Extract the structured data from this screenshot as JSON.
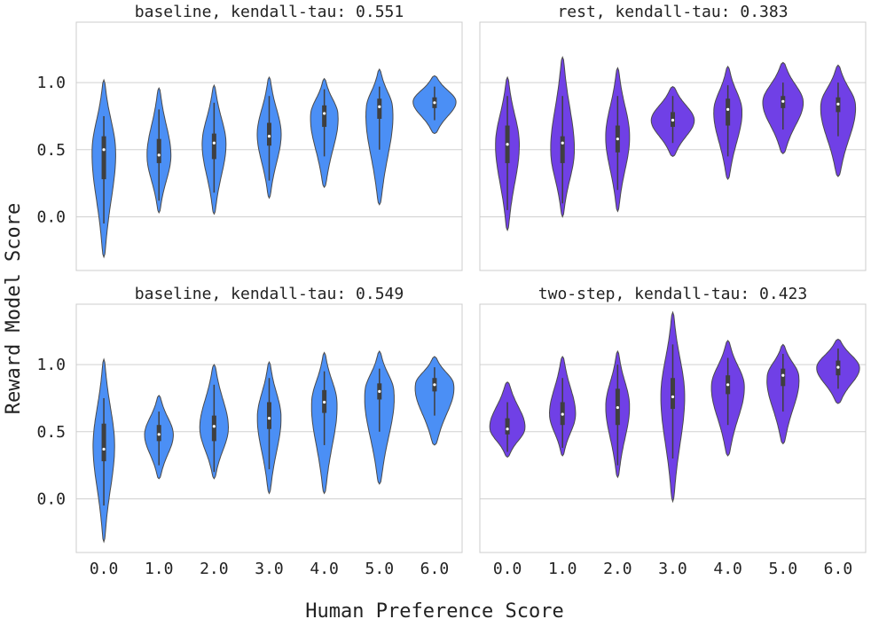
{
  "figure": {
    "xlabel": "Human Preference Score",
    "ylabel": "Reward Model Score"
  },
  "chart_data": [
    {
      "type": "violin",
      "title": "baseline, kendall-tau: 0.551",
      "color": "#4b8ff5",
      "categories": [
        "0.0",
        "1.0",
        "2.0",
        "3.0",
        "4.0",
        "5.0",
        "6.0"
      ],
      "yticks": [
        "0.0",
        "0.5",
        "1.0"
      ],
      "ylim": [
        -0.4,
        1.45
      ],
      "grid": true,
      "distributions": [
        {
          "min": -0.3,
          "max": 1.02,
          "q1": 0.28,
          "median": 0.5,
          "q3": 0.6,
          "whisker": [
            -0.05,
            0.75
          ],
          "mode": 0.5,
          "peak": 0.5
        },
        {
          "min": 0.03,
          "max": 0.96,
          "q1": 0.4,
          "median": 0.46,
          "q3": 0.58,
          "whisker": [
            0.12,
            0.8
          ],
          "mode": 0.45,
          "peak": 0.5
        },
        {
          "min": 0.02,
          "max": 0.98,
          "q1": 0.43,
          "median": 0.55,
          "q3": 0.62,
          "whisker": [
            0.18,
            0.85
          ],
          "mode": 0.55,
          "peak": 0.5
        },
        {
          "min": 0.14,
          "max": 1.04,
          "q1": 0.53,
          "median": 0.6,
          "q3": 0.7,
          "whisker": [
            0.27,
            0.9
          ],
          "mode": 0.62,
          "peak": 0.5
        },
        {
          "min": 0.22,
          "max": 1.03,
          "q1": 0.67,
          "median": 0.77,
          "q3": 0.83,
          "whisker": [
            0.45,
            0.95
          ],
          "mode": 0.77,
          "peak": 0.6
        },
        {
          "min": 0.09,
          "max": 1.1,
          "q1": 0.73,
          "median": 0.82,
          "q3": 0.88,
          "whisker": [
            0.5,
            0.97
          ],
          "mode": 0.82,
          "peak": 0.6
        },
        {
          "min": 0.62,
          "max": 1.05,
          "q1": 0.81,
          "median": 0.85,
          "q3": 0.89,
          "whisker": [
            0.72,
            0.97
          ],
          "mode": 0.86,
          "peak": 0.9
        }
      ]
    },
    {
      "type": "violin",
      "title": "rest, kendall-tau: 0.383",
      "color": "#7040e6",
      "categories": [
        "0.0",
        "1.0",
        "2.0",
        "3.0",
        "4.0",
        "5.0",
        "6.0"
      ],
      "yticks": [
        "0.0",
        "0.5",
        "1.0"
      ],
      "ylim": [
        -0.4,
        1.45
      ],
      "grid": true,
      "distributions": [
        {
          "min": -0.1,
          "max": 1.04,
          "q1": 0.4,
          "median": 0.54,
          "q3": 0.68,
          "whisker": [
            0.05,
            0.9
          ],
          "mode": 0.55,
          "peak": 0.5
        },
        {
          "min": 0.0,
          "max": 1.19,
          "q1": 0.4,
          "median": 0.55,
          "q3": 0.6,
          "whisker": [
            0.1,
            0.9
          ],
          "mode": 0.48,
          "peak": 0.5
        },
        {
          "min": 0.04,
          "max": 1.11,
          "q1": 0.48,
          "median": 0.58,
          "q3": 0.68,
          "whisker": [
            0.2,
            0.9
          ],
          "mode": 0.6,
          "peak": 0.5
        },
        {
          "min": 0.45,
          "max": 0.97,
          "q1": 0.67,
          "median": 0.72,
          "q3": 0.78,
          "whisker": [
            0.55,
            0.9
          ],
          "mode": 0.72,
          "peak": 0.9
        },
        {
          "min": 0.28,
          "max": 1.12,
          "q1": 0.68,
          "median": 0.8,
          "q3": 0.88,
          "whisker": [
            0.45,
            0.98
          ],
          "mode": 0.8,
          "peak": 0.6
        },
        {
          "min": 0.47,
          "max": 1.15,
          "q1": 0.81,
          "median": 0.86,
          "q3": 0.9,
          "whisker": [
            0.65,
            1.0
          ],
          "mode": 0.86,
          "peak": 0.85
        },
        {
          "min": 0.3,
          "max": 1.13,
          "q1": 0.78,
          "median": 0.84,
          "q3": 0.89,
          "whisker": [
            0.6,
            1.0
          ],
          "mode": 0.84,
          "peak": 0.75
        }
      ]
    },
    {
      "type": "violin",
      "title": "baseline, kendall-tau: 0.549",
      "color": "#4b8ff5",
      "categories": [
        "0.0",
        "1.0",
        "2.0",
        "3.0",
        "4.0",
        "5.0",
        "6.0"
      ],
      "yticks": [
        "0.0",
        "0.5",
        "1.0"
      ],
      "ylim": [
        -0.4,
        1.45
      ],
      "grid": true,
      "distributions": [
        {
          "min": -0.32,
          "max": 1.04,
          "q1": 0.28,
          "median": 0.37,
          "q3": 0.56,
          "whisker": [
            -0.05,
            0.75
          ],
          "mode": 0.4,
          "peak": 0.45
        },
        {
          "min": 0.15,
          "max": 0.77,
          "q1": 0.43,
          "median": 0.48,
          "q3": 0.55,
          "whisker": [
            0.25,
            0.65
          ],
          "mode": 0.48,
          "peak": 0.6
        },
        {
          "min": 0.15,
          "max": 1.0,
          "q1": 0.43,
          "median": 0.54,
          "q3": 0.62,
          "whisker": [
            0.2,
            0.85
          ],
          "mode": 0.52,
          "peak": 0.6
        },
        {
          "min": 0.04,
          "max": 1.02,
          "q1": 0.52,
          "median": 0.6,
          "q3": 0.72,
          "whisker": [
            0.22,
            0.9
          ],
          "mode": 0.62,
          "peak": 0.5
        },
        {
          "min": 0.04,
          "max": 1.09,
          "q1": 0.64,
          "median": 0.72,
          "q3": 0.81,
          "whisker": [
            0.4,
            0.95
          ],
          "mode": 0.73,
          "peak": 0.55
        },
        {
          "min": 0.11,
          "max": 1.1,
          "q1": 0.74,
          "median": 0.8,
          "q3": 0.86,
          "whisker": [
            0.5,
            0.97
          ],
          "mode": 0.81,
          "peak": 0.65
        },
        {
          "min": 0.4,
          "max": 1.06,
          "q1": 0.8,
          "median": 0.85,
          "q3": 0.9,
          "whisker": [
            0.62,
            0.98
          ],
          "mode": 0.86,
          "peak": 0.85
        }
      ]
    },
    {
      "type": "violin",
      "title": "two-step, kendall-tau: 0.423",
      "color": "#7040e6",
      "categories": [
        "0.0",
        "1.0",
        "2.0",
        "3.0",
        "4.0",
        "5.0",
        "6.0"
      ],
      "yticks": [
        "0.0",
        "0.5",
        "1.0"
      ],
      "ylim": [
        -0.4,
        1.45
      ],
      "grid": true,
      "distributions": [
        {
          "min": 0.31,
          "max": 0.87,
          "q1": 0.48,
          "median": 0.52,
          "q3": 0.6,
          "whisker": [
            0.35,
            0.72
          ],
          "mode": 0.52,
          "peak": 0.75
        },
        {
          "min": 0.32,
          "max": 1.06,
          "q1": 0.55,
          "median": 0.63,
          "q3": 0.72,
          "whisker": [
            0.38,
            0.9
          ],
          "mode": 0.62,
          "peak": 0.55
        },
        {
          "min": 0.16,
          "max": 1.1,
          "q1": 0.55,
          "median": 0.68,
          "q3": 0.82,
          "whisker": [
            0.25,
            1.0
          ],
          "mode": 0.7,
          "peak": 0.5
        },
        {
          "min": -0.02,
          "max": 1.39,
          "q1": 0.67,
          "median": 0.76,
          "q3": 0.9,
          "whisker": [
            0.3,
            1.15
          ],
          "mode": 0.78,
          "peak": 0.5
        },
        {
          "min": 0.32,
          "max": 1.18,
          "q1": 0.78,
          "median": 0.85,
          "q3": 0.92,
          "whisker": [
            0.55,
            1.05
          ],
          "mode": 0.85,
          "peak": 0.7
        },
        {
          "min": 0.41,
          "max": 1.15,
          "q1": 0.84,
          "median": 0.92,
          "q3": 0.97,
          "whisker": [
            0.65,
            1.08
          ],
          "mode": 0.92,
          "peak": 0.7
        },
        {
          "min": 0.71,
          "max": 1.19,
          "q1": 0.92,
          "median": 0.98,
          "q3": 1.03,
          "whisker": [
            0.82,
            1.12
          ],
          "mode": 0.98,
          "peak": 0.9
        }
      ]
    }
  ]
}
